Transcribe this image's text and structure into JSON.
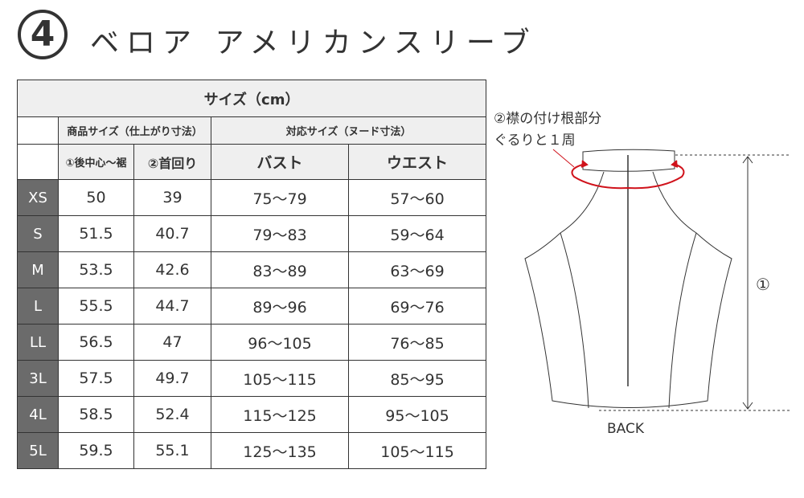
{
  "header": {
    "number": "4",
    "title": "ベロア アメリカンスリーブ"
  },
  "table": {
    "title": "サイズ（cm）",
    "group_product": "商品サイズ（仕上がり寸法）",
    "group_body": "対応サイズ（ヌード寸法）",
    "columns": [
      "①後中心～裾",
      "②首回り",
      "バスト",
      "ウエスト"
    ],
    "rows": [
      {
        "size": "XS",
        "length": "50",
        "neck": "39",
        "bust": "75～79",
        "waist": "57～60"
      },
      {
        "size": "S",
        "length": "51.5",
        "neck": "40.7",
        "bust": "79～83",
        "waist": "59～64"
      },
      {
        "size": "M",
        "length": "53.5",
        "neck": "42.6",
        "bust": "83～89",
        "waist": "63～69"
      },
      {
        "size": "L",
        "length": "55.5",
        "neck": "44.7",
        "bust": "89～96",
        "waist": "69～76"
      },
      {
        "size": "LL",
        "length": "56.5",
        "neck": "47",
        "bust": "96～105",
        "waist": "76～85"
      },
      {
        "size": "3L",
        "length": "57.5",
        "neck": "49.7",
        "bust": "105～115",
        "waist": "85～95"
      },
      {
        "size": "4L",
        "length": "58.5",
        "neck": "52.4",
        "bust": "115～125",
        "waist": "95～105"
      },
      {
        "size": "5L",
        "length": "59.5",
        "neck": "55.1",
        "bust": "125～135",
        "waist": "105～115"
      }
    ]
  },
  "diagram": {
    "note_line1": "②襟の付け根部分",
    "note_line2": "ぐるりと１周",
    "length_marker": "①",
    "view_label": "BACK",
    "accent_color": "#d0121b"
  }
}
